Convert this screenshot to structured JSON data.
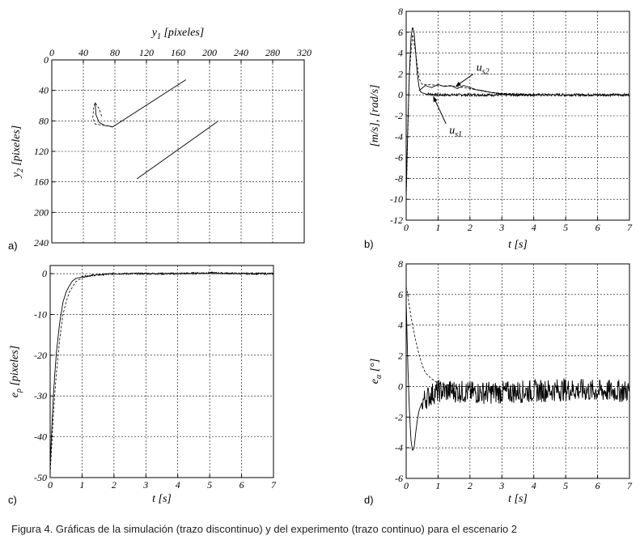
{
  "caption": "Figura 4. Gráficas de la simulación (trazo discontinuo) y del experimento (trazo continuo) para el escenario 2",
  "chart_data": [
    {
      "id": "a",
      "panel_label": "a)",
      "type": "line",
      "xlabel_main": "y",
      "xlabel_sub": "1",
      "xlabel_rest": " [pixeles]",
      "ylabel_main": "y",
      "ylabel_sub": "2",
      "ylabel_rest": " [pixeles]",
      "xlim": [
        0,
        320
      ],
      "ylim": [
        0,
        240
      ],
      "y_inverted": true,
      "x_axis_position": "top",
      "xticks": [
        0,
        40,
        80,
        120,
        160,
        200,
        240,
        280,
        320
      ],
      "yticks": [
        0,
        40,
        80,
        120,
        160,
        200,
        240
      ],
      "grid": true,
      "series": [
        {
          "style": "solid",
          "x": [
            170,
            77
          ],
          "y": [
            26,
            88
          ]
        },
        {
          "style": "dashed",
          "x": [
            77,
            68,
            60,
            55,
            52,
            53,
            55,
            60,
            64
          ],
          "y": [
            88,
            86,
            85,
            84,
            76,
            63,
            56,
            64,
            76
          ]
        },
        {
          "style": "solid",
          "x": [
            55,
            56,
            60,
            67,
            74,
            77
          ],
          "y": [
            56,
            72,
            82,
            86,
            87,
            88
          ]
        },
        {
          "style": "solid",
          "x": [
            210,
            108
          ],
          "y": [
            81,
            156
          ]
        }
      ]
    },
    {
      "id": "b",
      "panel_label": "b)",
      "type": "line",
      "xlabel_main": "t",
      "xlabel_sub": "",
      "xlabel_rest": " [s]",
      "ylabel_main": "[m/s], [rad/s]",
      "ylabel_sub": "",
      "ylabel_rest": "",
      "xlim": [
        0,
        7
      ],
      "ylim": [
        -12,
        8
      ],
      "xticks": [
        0,
        1,
        2,
        3,
        4,
        5,
        6,
        7
      ],
      "yticks": [
        -12,
        -10,
        -8,
        -6,
        -4,
        -2,
        0,
        2,
        4,
        6,
        8
      ],
      "grid": true,
      "noise": {
        "amplitude": 0.12,
        "start": 0.6
      },
      "series": [
        {
          "style": "solid",
          "x": [
            0,
            0.05,
            0.1,
            0.15,
            0.2,
            0.25,
            0.3,
            0.35,
            0.4,
            0.45,
            0.5,
            0.6,
            0.8,
            1.0,
            1.5,
            2.0,
            3.0,
            4.0,
            5.0,
            6.0,
            7.0
          ],
          "y": [
            -9.5,
            -3,
            2,
            5.5,
            6.5,
            6.0,
            4,
            2,
            0.8,
            0.3,
            0.2,
            0.1,
            0.05,
            0.0,
            0.0,
            0.0,
            0.0,
            0.0,
            0.0,
            0.0,
            0.0
          ]
        },
        {
          "style": "dashed",
          "x": [
            0,
            0.1,
            0.2,
            0.3,
            0.4,
            0.5,
            0.7,
            1.0,
            1.3,
            1.6,
            2.0,
            2.5,
            3.0,
            4.0,
            5.0,
            6.0,
            7.0
          ],
          "y": [
            -10,
            2,
            5.8,
            4,
            1.6,
            1.0,
            1.0,
            0.9,
            0.85,
            0.8,
            0.6,
            0.3,
            0.15,
            0.05,
            0.0,
            0.0,
            0.0
          ]
        },
        {
          "style": "solid",
          "x": [
            0.4,
            0.6,
            0.8,
            1.0,
            1.2,
            1.4,
            1.6,
            1.8,
            2.0,
            2.2,
            2.4,
            2.7,
            3.0,
            3.5,
            4.0
          ],
          "y": [
            0.4,
            0.9,
            0.7,
            1.0,
            0.8,
            0.9,
            0.6,
            0.9,
            0.7,
            0.5,
            0.4,
            0.2,
            0.1,
            0.0,
            0.0
          ]
        }
      ],
      "annotations": [
        {
          "main": "u",
          "sub": "s2",
          "text_x": 2.2,
          "text_y": 2.3,
          "arrow_to_x": 1.55,
          "arrow_to_y": 0.8
        },
        {
          "main": "u",
          "sub": "s1",
          "text_x": 1.35,
          "text_y": -3.7,
          "arrow_to_x": 0.85,
          "arrow_to_y": -0.15
        }
      ]
    },
    {
      "id": "c",
      "panel_label": "c)",
      "type": "line",
      "xlabel_main": "t",
      "xlabel_sub": "",
      "xlabel_rest": " [s]",
      "ylabel_main": "e",
      "ylabel_sub": "ρ",
      "ylabel_rest": " [pixeles]",
      "xlim": [
        0,
        7
      ],
      "ylim": [
        -50,
        2
      ],
      "xticks": [
        0,
        1,
        2,
        3,
        4,
        5,
        6,
        7
      ],
      "yticks": [
        -50,
        -40,
        -30,
        -20,
        -10,
        0
      ],
      "grid": true,
      "noise": {
        "amplitude": 0.2,
        "start": 1.0
      },
      "series": [
        {
          "style": "solid",
          "x": [
            0,
            0.05,
            0.1,
            0.15,
            0.2,
            0.3,
            0.4,
            0.5,
            0.6,
            0.7,
            0.8,
            1.0,
            1.2,
            1.5,
            2.0,
            3.0,
            4.0,
            5.0,
            6.0,
            7.0
          ],
          "y": [
            -47,
            -38,
            -30,
            -24,
            -19,
            -12,
            -7,
            -4.5,
            -3,
            -1.8,
            -1.2,
            -0.8,
            -0.5,
            -0.3,
            0.0,
            0.0,
            0.0,
            0.2,
            0.0,
            0.0
          ]
        },
        {
          "style": "dashed",
          "x": [
            0,
            0.05,
            0.1,
            0.15,
            0.2,
            0.3,
            0.4,
            0.5,
            0.6,
            0.8,
            1.0,
            1.3,
            1.6,
            2.0,
            3.0,
            4.0,
            5.0,
            6.0,
            7.0
          ],
          "y": [
            -49,
            -42,
            -35,
            -29,
            -24,
            -16,
            -10,
            -7,
            -4.5,
            -2,
            -1,
            -0.5,
            -0.2,
            0.0,
            0.0,
            0.0,
            0.0,
            0.0,
            0.0
          ]
        }
      ]
    },
    {
      "id": "d",
      "panel_label": "d)",
      "type": "line",
      "xlabel_main": "t",
      "xlabel_sub": "",
      "xlabel_rest": " [s]",
      "ylabel_main": "e",
      "ylabel_sub": "α",
      "ylabel_rest": " [°]",
      "xlim": [
        0,
        7
      ],
      "ylim": [
        -6,
        8
      ],
      "xticks": [
        0,
        1,
        2,
        3,
        4,
        5,
        6,
        7
      ],
      "yticks": [
        -6,
        -4,
        -2,
        0,
        2,
        4,
        6,
        8
      ],
      "grid": true,
      "noise": {
        "amplitude": 0.75,
        "start": 0.5
      },
      "series": [
        {
          "style": "solid",
          "x": [
            0,
            0.05,
            0.1,
            0.15,
            0.2,
            0.25,
            0.3,
            0.35,
            0.4,
            0.5,
            0.6,
            0.8,
            1.0,
            1.5,
            2.0,
            3.0,
            4.0,
            5.0,
            6.0,
            7.0
          ],
          "y": [
            5.5,
            1.5,
            -1.5,
            -3.5,
            -4.2,
            -4.0,
            -3,
            -2.2,
            -1.6,
            -1.0,
            -0.8,
            -0.5,
            -0.3,
            -0.3,
            -0.4,
            -0.4,
            -0.3,
            -0.2,
            -0.3,
            -0.3
          ]
        },
        {
          "style": "dashed",
          "x": [
            0,
            0.05,
            0.1,
            0.2,
            0.3,
            0.4,
            0.5,
            0.6,
            0.8,
            1.0,
            1.3,
            1.6,
            2.0,
            3.0,
            4.0,
            5.0,
            6.0,
            7.0
          ],
          "y": [
            6.5,
            6.0,
            5.2,
            4.0,
            3.0,
            2.1,
            1.4,
            0.9,
            0.5,
            0.2,
            0.1,
            0.0,
            0.0,
            0.0,
            0.0,
            0.0,
            0.0,
            0.0
          ]
        }
      ]
    }
  ]
}
